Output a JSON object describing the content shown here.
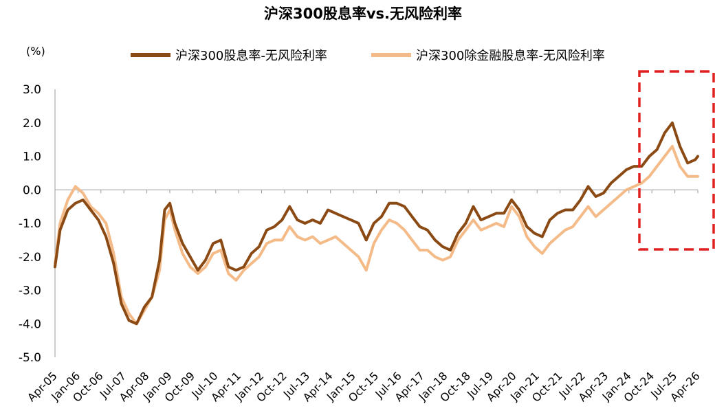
{
  "chart_data": {
    "type": "line",
    "title": "沪深300股息率vs.无风险利率",
    "y_unit": "(%)",
    "ylim": [
      -5.0,
      3.0
    ],
    "y_ticks": [
      "3.0",
      "2.0",
      "1.0",
      "0.0",
      "-1.0",
      "-2.0",
      "-3.0",
      "-4.0",
      "-5.0"
    ],
    "x_ticks": [
      "Apr-05",
      "Jan-06",
      "Oct-06",
      "Jul-07",
      "Apr-08",
      "Jan-09",
      "Oct-09",
      "Jul-10",
      "Apr-11",
      "Jan-12",
      "Oct-12",
      "Jul-13",
      "Apr-14",
      "Jan-15",
      "Oct-15",
      "Jul-16",
      "Apr-17",
      "Jan-18",
      "Oct-18",
      "Jul-19",
      "Apr-20",
      "Jan-21",
      "Oct-21",
      "Jul-22",
      "Apr-23",
      "Jan-24",
      "Oct-24",
      "Jul-25",
      "Apr-26"
    ],
    "x_range": [
      "2005-04",
      "2026-04"
    ],
    "legend_position": "top",
    "grid": false,
    "annotation": "red dashed box highlighting Oct-24 to Apr-26",
    "series": [
      {
        "name": "沪深300股息率-无风险利率",
        "color": "#8B4A14",
        "points": [
          [
            "2005-04",
            -2.3
          ],
          [
            "2005-06",
            -1.2
          ],
          [
            "2005-09",
            -0.6
          ],
          [
            "2005-12",
            -0.4
          ],
          [
            "2006-03",
            -0.3
          ],
          [
            "2006-06",
            -0.6
          ],
          [
            "2006-09",
            -0.9
          ],
          [
            "2006-12",
            -1.4
          ],
          [
            "2007-03",
            -2.2
          ],
          [
            "2007-06",
            -3.4
          ],
          [
            "2007-09",
            -3.9
          ],
          [
            "2007-12",
            -4.0
          ],
          [
            "2008-03",
            -3.5
          ],
          [
            "2008-06",
            -3.2
          ],
          [
            "2008-09",
            -2.1
          ],
          [
            "2008-11",
            -0.6
          ],
          [
            "2009-01",
            -0.4
          ],
          [
            "2009-03",
            -1.0
          ],
          [
            "2009-06",
            -1.6
          ],
          [
            "2009-09",
            -2.0
          ],
          [
            "2009-12",
            -2.4
          ],
          [
            "2010-03",
            -2.1
          ],
          [
            "2010-06",
            -1.6
          ],
          [
            "2010-09",
            -1.5
          ],
          [
            "2010-12",
            -2.3
          ],
          [
            "2011-03",
            -2.4
          ],
          [
            "2011-06",
            -2.3
          ],
          [
            "2011-09",
            -1.9
          ],
          [
            "2011-12",
            -1.7
          ],
          [
            "2012-03",
            -1.2
          ],
          [
            "2012-06",
            -1.1
          ],
          [
            "2012-09",
            -0.9
          ],
          [
            "2012-12",
            -0.5
          ],
          [
            "2013-03",
            -0.9
          ],
          [
            "2013-06",
            -1.0
          ],
          [
            "2013-09",
            -0.9
          ],
          [
            "2013-12",
            -1.0
          ],
          [
            "2014-03",
            -0.6
          ],
          [
            "2014-06",
            -0.7
          ],
          [
            "2014-09",
            -0.8
          ],
          [
            "2014-12",
            -0.9
          ],
          [
            "2015-03",
            -1.0
          ],
          [
            "2015-06",
            -1.5
          ],
          [
            "2015-09",
            -1.0
          ],
          [
            "2015-12",
            -0.8
          ],
          [
            "2016-03",
            -0.4
          ],
          [
            "2016-06",
            -0.4
          ],
          [
            "2016-09",
            -0.5
          ],
          [
            "2016-12",
            -0.8
          ],
          [
            "2017-03",
            -1.1
          ],
          [
            "2017-06",
            -1.2
          ],
          [
            "2017-09",
            -1.5
          ],
          [
            "2017-12",
            -1.7
          ],
          [
            "2018-03",
            -1.8
          ],
          [
            "2018-06",
            -1.3
          ],
          [
            "2018-09",
            -1.0
          ],
          [
            "2018-12",
            -0.5
          ],
          [
            "2019-03",
            -0.9
          ],
          [
            "2019-06",
            -0.8
          ],
          [
            "2019-09",
            -0.7
          ],
          [
            "2019-12",
            -0.7
          ],
          [
            "2020-03",
            -0.3
          ],
          [
            "2020-06",
            -0.6
          ],
          [
            "2020-09",
            -1.1
          ],
          [
            "2020-12",
            -1.3
          ],
          [
            "2021-03",
            -1.4
          ],
          [
            "2021-06",
            -0.9
          ],
          [
            "2021-09",
            -0.7
          ],
          [
            "2021-12",
            -0.6
          ],
          [
            "2022-03",
            -0.6
          ],
          [
            "2022-06",
            -0.3
          ],
          [
            "2022-09",
            0.1
          ],
          [
            "2022-12",
            -0.2
          ],
          [
            "2023-03",
            -0.1
          ],
          [
            "2023-06",
            0.2
          ],
          [
            "2023-09",
            0.4
          ],
          [
            "2023-12",
            0.6
          ],
          [
            "2024-03",
            0.7
          ],
          [
            "2024-06",
            0.7
          ],
          [
            "2024-09",
            1.0
          ],
          [
            "2024-12",
            1.2
          ],
          [
            "2025-03",
            1.7
          ],
          [
            "2025-06",
            2.0
          ],
          [
            "2025-09",
            1.3
          ],
          [
            "2025-12",
            0.8
          ],
          [
            "2026-03",
            0.9
          ],
          [
            "2026-04",
            1.0
          ]
        ]
      },
      {
        "name": "沪深300除金融股息率-无风险利率",
        "color": "#F4BB88",
        "points": [
          [
            "2005-04",
            -2.2
          ],
          [
            "2005-06",
            -1.0
          ],
          [
            "2005-09",
            -0.3
          ],
          [
            "2005-12",
            0.1
          ],
          [
            "2006-03",
            -0.1
          ],
          [
            "2006-06",
            -0.5
          ],
          [
            "2006-09",
            -0.7
          ],
          [
            "2006-12",
            -1.0
          ],
          [
            "2007-03",
            -1.9
          ],
          [
            "2007-06",
            -3.2
          ],
          [
            "2007-09",
            -3.7
          ],
          [
            "2007-12",
            -4.0
          ],
          [
            "2008-03",
            -3.6
          ],
          [
            "2008-06",
            -3.2
          ],
          [
            "2008-09",
            -2.4
          ],
          [
            "2008-11",
            -0.9
          ],
          [
            "2009-01",
            -0.6
          ],
          [
            "2009-03",
            -1.2
          ],
          [
            "2009-06",
            -1.9
          ],
          [
            "2009-09",
            -2.3
          ],
          [
            "2009-12",
            -2.5
          ],
          [
            "2010-03",
            -2.3
          ],
          [
            "2010-06",
            -1.9
          ],
          [
            "2010-09",
            -1.8
          ],
          [
            "2010-12",
            -2.5
          ],
          [
            "2011-03",
            -2.7
          ],
          [
            "2011-06",
            -2.4
          ],
          [
            "2011-09",
            -2.2
          ],
          [
            "2011-12",
            -2.0
          ],
          [
            "2012-03",
            -1.6
          ],
          [
            "2012-06",
            -1.5
          ],
          [
            "2012-09",
            -1.5
          ],
          [
            "2012-12",
            -1.1
          ],
          [
            "2013-03",
            -1.4
          ],
          [
            "2013-06",
            -1.5
          ],
          [
            "2013-09",
            -1.4
          ],
          [
            "2013-12",
            -1.6
          ],
          [
            "2014-03",
            -1.5
          ],
          [
            "2014-06",
            -1.4
          ],
          [
            "2014-09",
            -1.6
          ],
          [
            "2014-12",
            -1.8
          ],
          [
            "2015-03",
            -2.0
          ],
          [
            "2015-06",
            -2.4
          ],
          [
            "2015-09",
            -1.6
          ],
          [
            "2015-12",
            -1.2
          ],
          [
            "2016-03",
            -0.9
          ],
          [
            "2016-06",
            -1.0
          ],
          [
            "2016-09",
            -1.2
          ],
          [
            "2016-12",
            -1.5
          ],
          [
            "2017-03",
            -1.8
          ],
          [
            "2017-06",
            -1.8
          ],
          [
            "2017-09",
            -2.0
          ],
          [
            "2017-12",
            -2.1
          ],
          [
            "2018-03",
            -2.0
          ],
          [
            "2018-06",
            -1.5
          ],
          [
            "2018-09",
            -1.2
          ],
          [
            "2018-12",
            -0.9
          ],
          [
            "2019-03",
            -1.2
          ],
          [
            "2019-06",
            -1.1
          ],
          [
            "2019-09",
            -1.0
          ],
          [
            "2019-12",
            -1.1
          ],
          [
            "2020-03",
            -0.5
          ],
          [
            "2020-06",
            -0.8
          ],
          [
            "2020-09",
            -1.4
          ],
          [
            "2020-12",
            -1.7
          ],
          [
            "2021-03",
            -1.9
          ],
          [
            "2021-06",
            -1.6
          ],
          [
            "2021-09",
            -1.4
          ],
          [
            "2021-12",
            -1.2
          ],
          [
            "2022-03",
            -1.1
          ],
          [
            "2022-06",
            -0.8
          ],
          [
            "2022-09",
            -0.5
          ],
          [
            "2022-12",
            -0.8
          ],
          [
            "2023-03",
            -0.6
          ],
          [
            "2023-06",
            -0.4
          ],
          [
            "2023-09",
            -0.2
          ],
          [
            "2023-12",
            0.0
          ],
          [
            "2024-03",
            0.1
          ],
          [
            "2024-06",
            0.2
          ],
          [
            "2024-09",
            0.4
          ],
          [
            "2024-12",
            0.7
          ],
          [
            "2025-03",
            1.0
          ],
          [
            "2025-06",
            1.3
          ],
          [
            "2025-09",
            0.7
          ],
          [
            "2025-12",
            0.4
          ],
          [
            "2026-03",
            0.4
          ],
          [
            "2026-04",
            0.4
          ]
        ]
      }
    ]
  }
}
